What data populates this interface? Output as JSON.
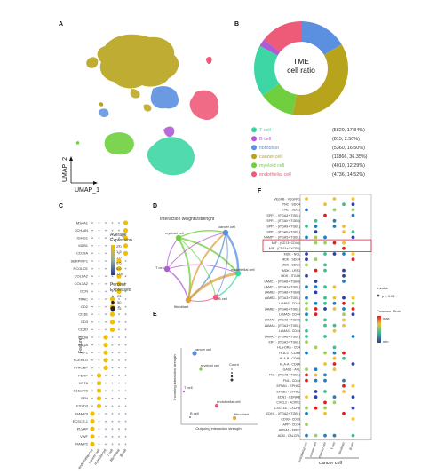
{
  "panels": {
    "A": "A",
    "B": "B",
    "C": "C",
    "D": "D",
    "E": "E",
    "F": "F"
  },
  "umap": {
    "xlabel": "UMAP_1",
    "ylabel": "UMAP_2"
  },
  "donut": {
    "center_line1": "TME",
    "center_line2": "cell ratio",
    "slices": [
      {
        "name": "T cell",
        "value_text": "(5820, 17.84%)",
        "pct": 17.84,
        "color": "#3fd6a6"
      },
      {
        "name": "B cell",
        "value_text": "(815, 2.50%)",
        "pct": 2.5,
        "color": "#b259d6"
      },
      {
        "name": "fibroblast",
        "value_text": "(5360, 16.50%)",
        "pct": 16.5,
        "color": "#5b8fe0"
      },
      {
        "name": "cancer cell",
        "value_text": "(11866, 36.35%)",
        "pct": 36.35,
        "color": "#b8a31c"
      },
      {
        "name": "myeloid cell",
        "value_text": "(4010, 12.29%)",
        "pct": 12.29,
        "color": "#6fcf3e"
      },
      {
        "name": "endothelial cell",
        "value_text": "(4736, 14.52%)",
        "pct": 14.52,
        "color": "#ee5b78"
      }
    ]
  },
  "dotplot": {
    "genes": [
      "MS4A1",
      "JCHAIN",
      "IGHG1",
      "MZB1",
      "CD79A",
      "SERPINF1",
      "PCOLCE",
      "COL6A2",
      "COL1A2",
      "DCN",
      "TRAC",
      "CD2",
      "CD3E",
      "CD3",
      "CD3D",
      "C1QB",
      "C1QA",
      "AIF1",
      "FCER1G",
      "TYROBP",
      "PERP",
      "KRT8",
      "C16orf73",
      "SFN",
      "FXYD3",
      "RAMP3",
      "ECSCR.1",
      "PLVAP",
      "VWF",
      "RAMP2"
    ],
    "ylabel": "Features",
    "cell_types": [
      "endothelial cell",
      "cancer cell",
      "myeloid cell",
      "T cell",
      "fibroblast",
      "B cell"
    ],
    "expr_legend_title": "Average Expression",
    "expr_ticks": [
      "2.0",
      "1.5",
      "1.0",
      "0.5",
      "0.0",
      "-0.5"
    ],
    "pct_legend_title": "Percent Expressed",
    "pct_ticks": [
      "25",
      "50",
      "75"
    ]
  },
  "network": {
    "title": "Interaction weights/strenght",
    "nodes": [
      {
        "name": "myeloid cell",
        "color": "#6fcf3e"
      },
      {
        "name": "cancer cell",
        "color": "#5b8fe0"
      },
      {
        "name": "T cell",
        "color": "#b259d6"
      },
      {
        "name": "endothelial cell",
        "color": "#3fd6a6"
      },
      {
        "name": "B cell",
        "color": "#ee5b78"
      },
      {
        "name": "fibroblast",
        "color": "#e0a040"
      }
    ]
  },
  "scatter": {
    "xlabel": "Outgoing interaction strength",
    "ylabel": "Incoming interaction strength",
    "legend_title": "Count",
    "points": [
      {
        "name": "cancer cell",
        "color": "#5b8fe0"
      },
      {
        "name": "myeloid cell",
        "color": "#6fcf3e"
      },
      {
        "name": "T cell",
        "color": "#b259d6"
      },
      {
        "name": "endothelial cell",
        "color": "#ee5b78"
      },
      {
        "name": "fibroblast",
        "color": "#e0a040"
      },
      {
        "name": "B cell",
        "color": "#b259d6"
      }
    ]
  },
  "bubble": {
    "pairs": [
      "VEGFB - VEGFR1",
      "TNC - SDC4",
      "TNC - SDC1",
      "SPP1 - (ITGA4+ITGB1)",
      "SPP1 - (ITGAV+ITGB5)",
      "SPP1 - (ITGA9+ITGB1)",
      "SPP1 - (ITGAV+ITGB1)",
      "NAMPT - (ITGA5+ITGB1)",
      "MIF - (CD74+CD44)",
      "MIF - (CD74+CXCR4)",
      "MDK - NCL",
      "MDK - SDC4",
      "MDK - SDC1",
      "MDK - LRP1",
      "MDK - ITGA6",
      "LAMC1 - (ITGA6+ITGB4)",
      "LAMC1 - (ITGA3+ITGB1)",
      "LAMB3 - (ITGA6+ITGB4)",
      "LAMB3 - (ITGA3+ITGB1)",
      "LAMB3 - CD44",
      "LAMB2 - (ITGA6+ITGB1)",
      "LAMA5 - CD44",
      "LAMA5 - (ITGA6+ITGB4)",
      "LAMA3 - (ITGA3+ITGB1)",
      "LAMA3 - CD44",
      "LAMA1 - (ITGA6+ITGB1)",
      "KRT - (ITGA2+ITGB1)",
      "HLA-DRA - CD4",
      "HLA-C - CD8A",
      "HLA-B - CD8A",
      "HLA-A - CD8A",
      "GAS6 - AXL",
      "FN1 - (ITGA5+ITGB1)",
      "FN1 - CD44",
      "EFNA1 - EPHA2",
      "EFNB1 - EPHB2",
      "EDN1 - EDNRB",
      "CXCL2 - ACKR1",
      "CXCL16 - CXCR6",
      "CDH1 - (ITGA2+ITGB1)",
      "CD99 - CD99",
      "APP - CD74",
      "ANXA1 - FPR1",
      "ADM - CALCRL"
    ],
    "xlabel": "cancer cell",
    "cell_types": [
      "endothelial cell",
      "cancer cell",
      "myeloid cell",
      "T cell",
      "fibroblast",
      "B cell"
    ],
    "pvalue_title": "p-value",
    "pvalue_label": "p < 0.01",
    "prob_title": "Commun. Prob.",
    "prob_max": "max",
    "prob_min": "min"
  }
}
